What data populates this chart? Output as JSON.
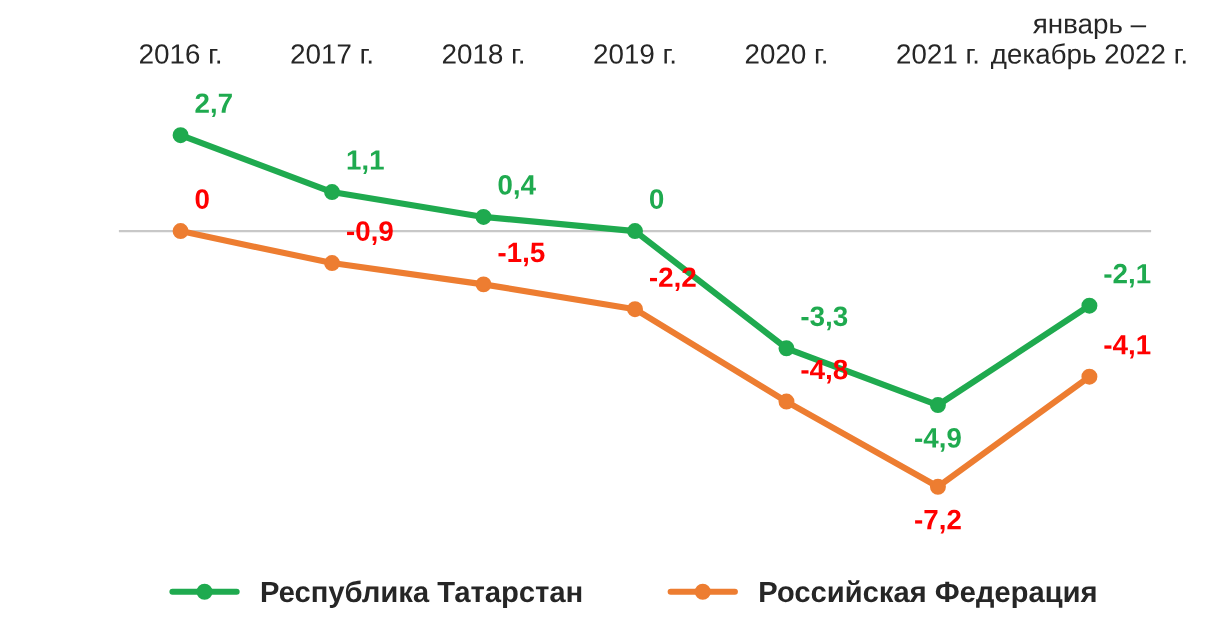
{
  "chart_data": {
    "type": "line",
    "categories": [
      "2016 г.",
      "2017 г.",
      "2018 г.",
      "2019 г.",
      "2020 г.",
      "2021 г.",
      "январь –\nдекабрь 2022 г."
    ],
    "series": [
      {
        "name": "Республика Татарстан",
        "color": "#1faa4f",
        "values": [
          2.7,
          1.1,
          0.4,
          0,
          -3.3,
          -4.9,
          -2.1
        ],
        "value_labels": [
          "2,7",
          "1,1",
          "0,4",
          "0",
          "-3,3",
          "-4,9",
          "-2,1"
        ]
      },
      {
        "name": "Российская Федерация",
        "color": "#ed7d31",
        "values": [
          0,
          -0.9,
          -1.5,
          -2.2,
          -4.8,
          -7.2,
          -4.1
        ],
        "value_labels": [
          "0",
          "-0,9",
          "-1,5",
          "-2,2",
          "-4,8",
          "-7,2",
          "-4,1"
        ]
      }
    ],
    "relative": false,
    "marker": "circle",
    "line_style": "solid",
    "legend": "bottom",
    "tick_labels": "x"
  }
}
